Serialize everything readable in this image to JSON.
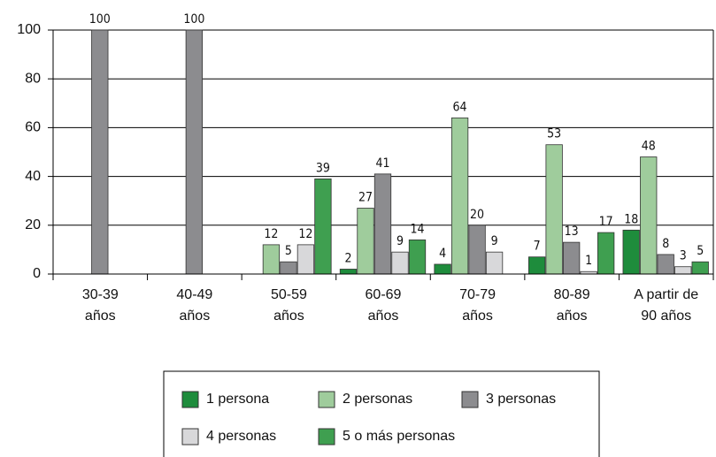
{
  "chart_data": {
    "type": "bar",
    "categories": [
      [
        "30-39",
        "años"
      ],
      [
        "40-49",
        "años"
      ],
      [
        "50-59",
        "años"
      ],
      [
        "60-69",
        "años"
      ],
      [
        "70-79",
        "años"
      ],
      [
        "80-89",
        "años"
      ],
      [
        "A partir de",
        "90 años"
      ]
    ],
    "series": [
      {
        "name": "1 persona",
        "color": "#1e8c3c",
        "values": [
          null,
          null,
          null,
          2,
          4,
          7,
          18
        ]
      },
      {
        "name": "2 personas",
        "color": "#9fcc9c",
        "values": [
          null,
          null,
          12,
          27,
          64,
          53,
          48
        ]
      },
      {
        "name": "3 personas",
        "color": "#8c8c8f",
        "values": [
          100,
          100,
          5,
          41,
          20,
          13,
          8
        ]
      },
      {
        "name": "4 personas",
        "color": "#d8d8da",
        "values": [
          null,
          null,
          12,
          9,
          9,
          1,
          3
        ]
      },
      {
        "name": "5 o más personas",
        "color": "#3f9f50",
        "values": [
          null,
          null,
          39,
          14,
          null,
          17,
          5
        ]
      }
    ],
    "ylim": [
      0,
      100
    ],
    "yticks": [
      0,
      20,
      40,
      60,
      80,
      100
    ],
    "grid": true
  }
}
